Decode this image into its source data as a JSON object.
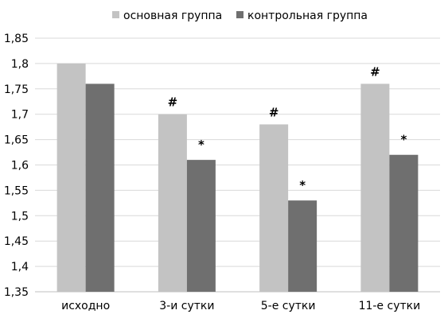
{
  "chart_data": {
    "type": "bar",
    "title": "",
    "xlabel": "",
    "ylabel": "",
    "categories": [
      "исходно",
      "3-и сутки",
      "5-е сутки",
      "11-е сутки"
    ],
    "series": [
      {
        "name": "основная группа",
        "color": "#c3c3c3",
        "values": [
          1.8,
          1.7,
          1.68,
          1.76
        ],
        "annotations": [
          "",
          "#",
          "#",
          "#"
        ]
      },
      {
        "name": "контрольная группа",
        "color": "#6f6f6f",
        "values": [
          1.76,
          1.61,
          1.53,
          1.62
        ],
        "annotations": [
          "",
          "*",
          "*",
          "*"
        ]
      }
    ],
    "ylim": [
      1.35,
      1.85
    ],
    "yticks": [
      "1,35",
      "1,4",
      "1,45",
      "1,5",
      "1,55",
      "1,6",
      "1,65",
      "1,7",
      "1,75",
      "1,8",
      "1,85"
    ],
    "ytick_values": [
      1.35,
      1.4,
      1.45,
      1.5,
      1.55,
      1.6,
      1.65,
      1.7,
      1.75,
      1.8,
      1.85
    ],
    "grid": true,
    "legend_position": "top-center"
  }
}
